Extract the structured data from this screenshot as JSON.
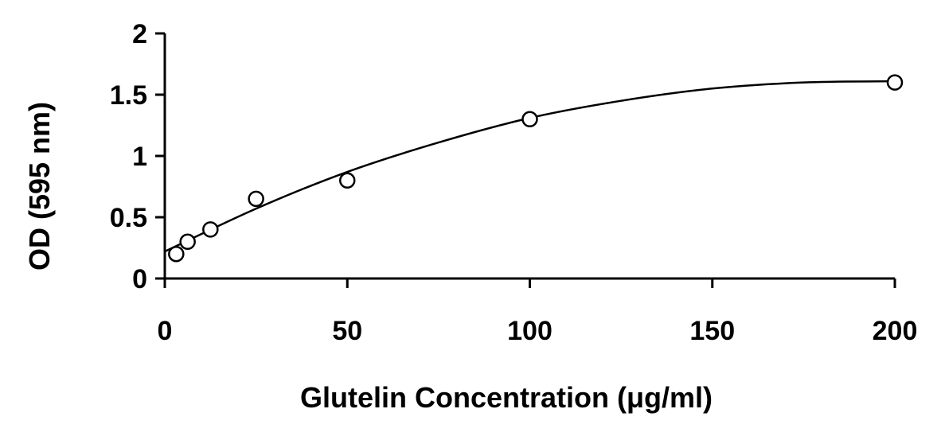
{
  "chart_data": {
    "type": "scatter",
    "title": "",
    "xlabel": "Glutelin  Concentration (μg/ml)",
    "ylabel": "OD (595 nm)",
    "xlim": [
      0,
      200
    ],
    "ylim": [
      0,
      2
    ],
    "x_ticks": [
      0,
      50,
      100,
      150,
      200
    ],
    "y_ticks": [
      0,
      0.5,
      1,
      1.5,
      2
    ],
    "x_tick_labels": [
      "0",
      "50",
      "100",
      "150",
      "200"
    ],
    "y_tick_labels": [
      "0",
      "0.5",
      "1",
      "1.5",
      "2"
    ],
    "grid": false,
    "legend": "none",
    "series": [
      {
        "x": [
          3.125,
          6.25,
          12.5,
          25,
          50,
          100,
          200
        ],
        "y": [
          0.2,
          0.3,
          0.4,
          0.65,
          0.8,
          1.3,
          1.6
        ]
      }
    ],
    "trendline": {
      "type": "polynomial",
      "x": [
        0,
        25,
        50,
        75,
        100,
        125,
        150,
        175,
        200
      ],
      "y": [
        0.22,
        0.57,
        0.87,
        1.11,
        1.31,
        1.45,
        1.55,
        1.6,
        1.61
      ]
    }
  }
}
